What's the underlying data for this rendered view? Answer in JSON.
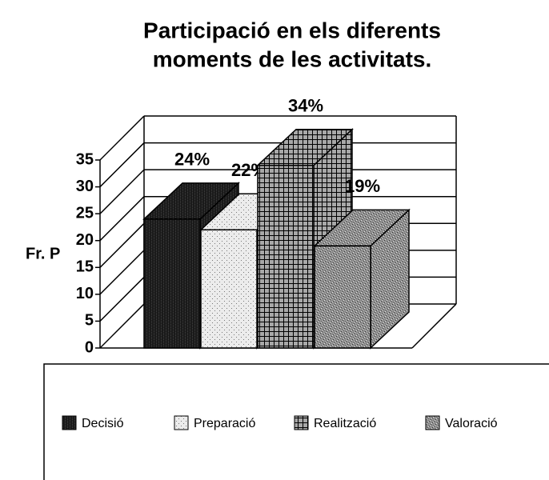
{
  "chart_data": {
    "type": "bar3d",
    "title": [
      "Participació en els diferents",
      "moments de les activitats."
    ],
    "y_label": "Fr. P",
    "categories": [
      "Decisió",
      "Preparació",
      "Realització",
      "Valoració"
    ],
    "values": [
      24,
      22,
      34,
      19
    ],
    "value_labels": [
      "24%",
      "22%",
      "34%",
      "19%"
    ],
    "colors": [
      "#1a1a1a",
      "#ececec",
      "#a8a8a8",
      "#8e8e8e"
    ],
    "ylim": [
      0,
      35
    ],
    "yticks": [
      0,
      5,
      10,
      15,
      20,
      25,
      30,
      35
    ],
    "grid": true,
    "legend": "bottom"
  }
}
